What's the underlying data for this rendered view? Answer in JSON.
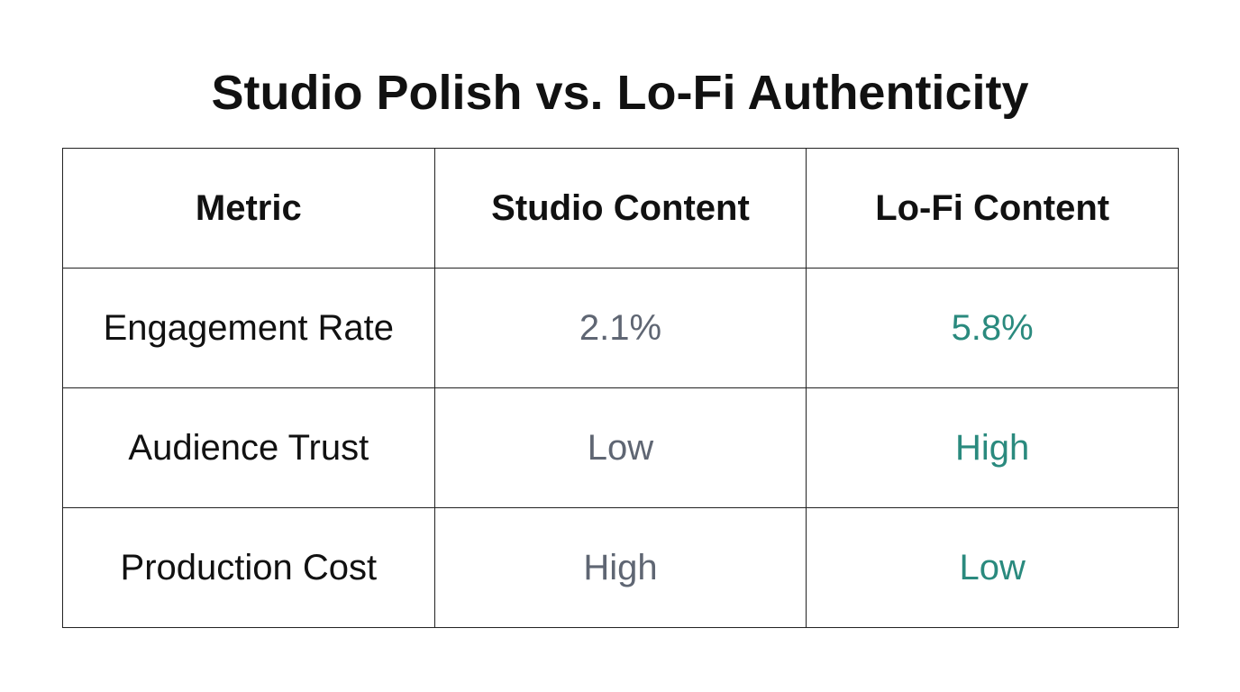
{
  "title": "Studio Polish vs. Lo-Fi Authenticity",
  "table": {
    "header": [
      "Metric",
      "Studio Content",
      "Lo-Fi Content"
    ],
    "rows": [
      [
        "Engagement Rate",
        "2.1%",
        "5.8%"
      ],
      [
        "Audience Trust",
        "Low",
        "High"
      ],
      [
        "Production Cost",
        "High",
        "Low"
      ]
    ]
  }
}
